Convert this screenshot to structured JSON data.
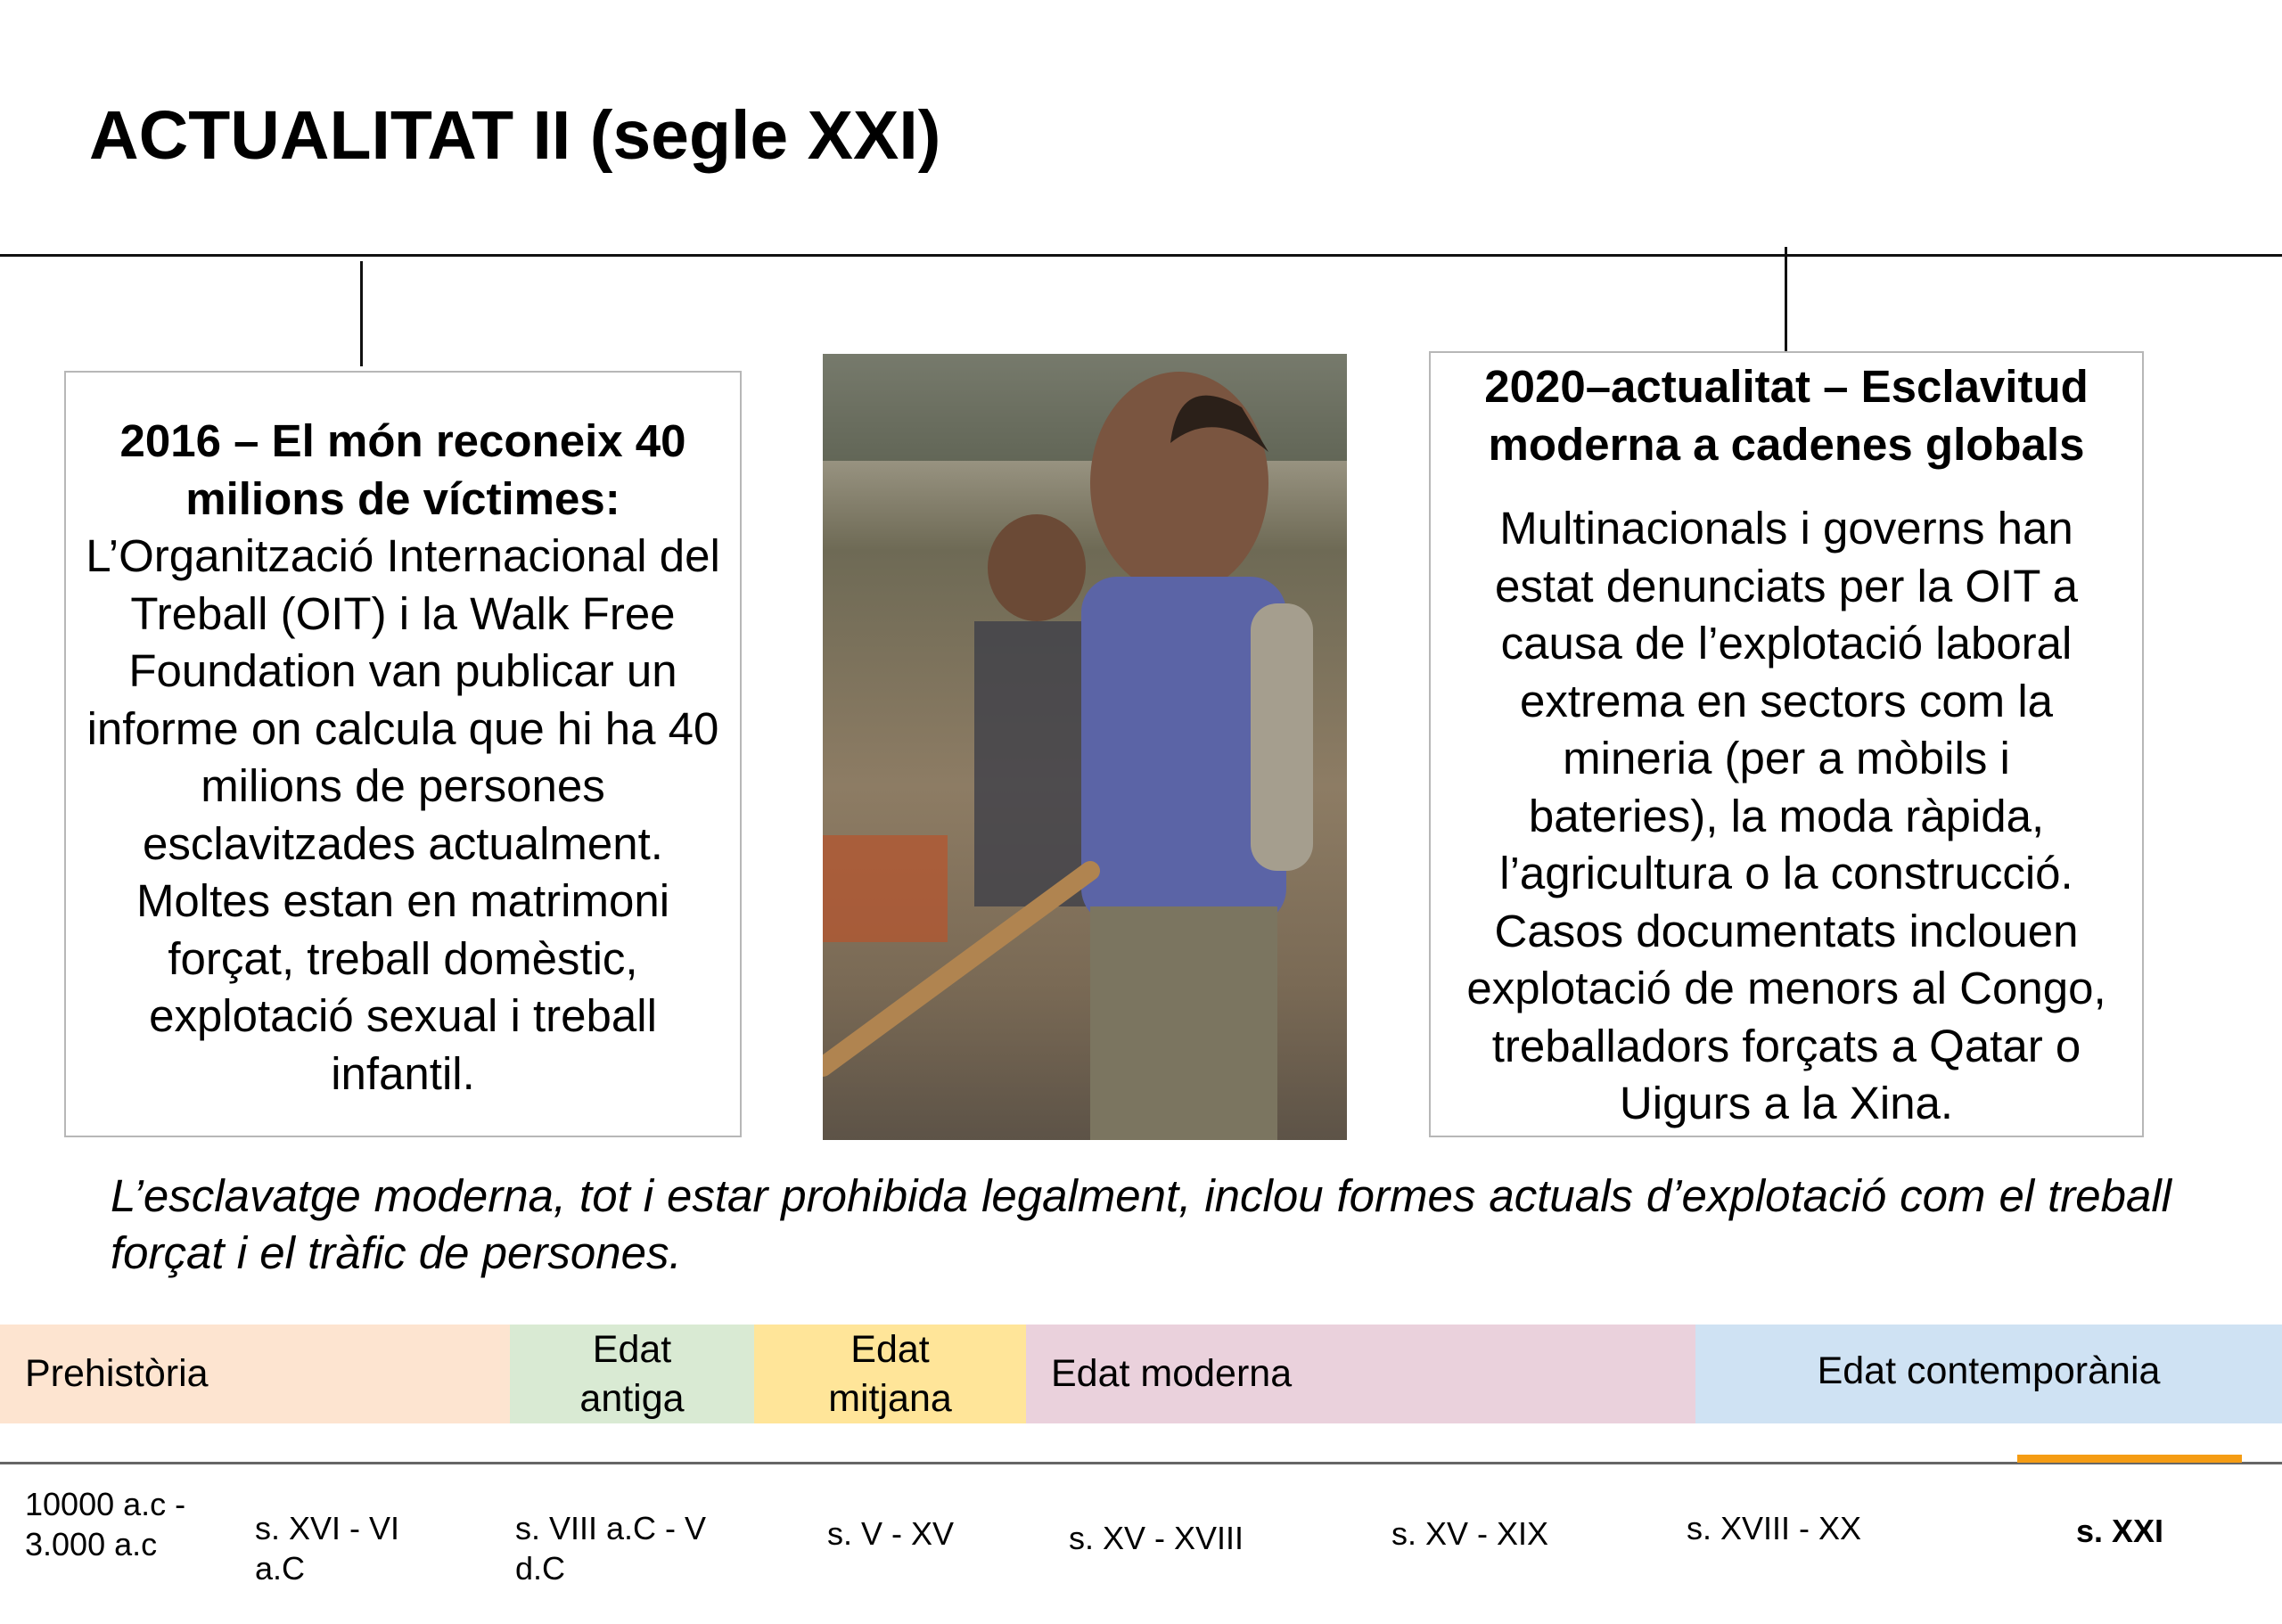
{
  "title": "ACTUALITAT II (segle XXI)",
  "left_box": {
    "heading": "2016 – El món reconeix 40 milions de víctimes:",
    "body": "L’Organització Internacional del Treball (OIT) i la Walk Free Foundation van publicar un informe on calcula que hi ha 40 milions de persones esclavitzades actualment. Moltes estan en matrimoni forçat, treball domèstic, explotació sexual i treball infantil."
  },
  "right_box": {
    "heading": "2020–actualitat – Esclavitud moderna a cadenes globals",
    "body": "Multinacionals i governs han estat denunciats per la OIT a causa de l’explotació laboral extrema en sectors com la mineria (per a mòbils i bateries), la moda ràpida, l’agricultura o la construcció. Casos documentats inclouen explotació de menors al Congo, treballadors forçats a Qatar o Uigurs a la Xina."
  },
  "photo": {
    "icon": "child-labor-photo"
  },
  "note": "L’esclavatge moderna, tot i estar prohibida legalment, inclou formes actuals d’explotació com el treball forçat i el tràfic de persones.",
  "timeline": {
    "eras": [
      {
        "label": "Prehistòria",
        "color": "#fde4d0"
      },
      {
        "label": "Edat antiga",
        "color": "#d9ead3"
      },
      {
        "label": "Edat mitjana",
        "color": "#ffe599"
      },
      {
        "label": "Edat moderna",
        "color": "#ead1dc"
      },
      {
        "label": "Edat contemporània",
        "color": "#cfe2f3"
      }
    ],
    "periods": [
      "10000  a.c  - 3.000 a.c",
      "s. XVI - VI a.C",
      "s. VIII a.C - V d.C",
      "s. V - XV",
      "s. XV - XVIII",
      "s. XV - XIX",
      "s. XVIII - XX",
      "s. XXI"
    ],
    "current_period": "s. XXI",
    "marker_color": "#f59c13"
  }
}
